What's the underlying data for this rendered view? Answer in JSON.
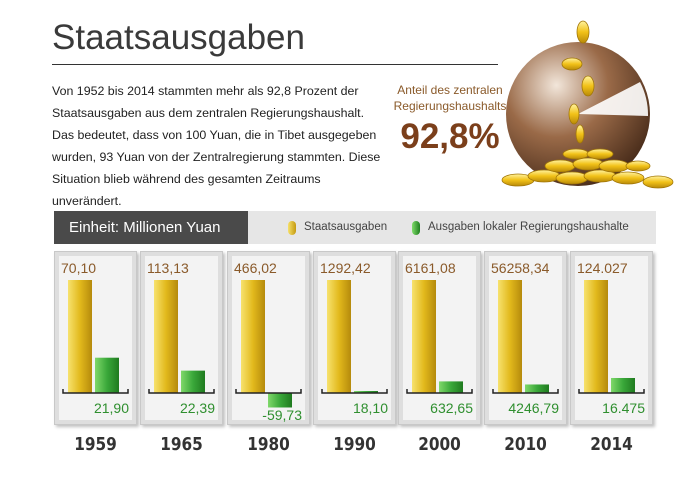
{
  "title": "Staatsausgaben",
  "intro_text": "Von 1952 bis 2014 stammten mehr als 92,8 Prozent der Staatsausgaben aus dem zentralen Regierungshaushalt. Das bedeutet, dass von 100 Yuan, die in Tibet ausgegeben wurden, 93 Yuan von der Zentralregierung stammten. Diese Situation blieb während des gesamten Zeitraums unverändert.",
  "share": {
    "label": "Anteil des zentralen Regierungshaushalts",
    "value": "92,8%",
    "icon": "coin-pile-icon"
  },
  "unit_label": "Einheit: Millionen Yuan",
  "colors": {
    "gold": "#d9b21a",
    "green": "#2f9a2f",
    "brown_text": "#8a5a2a",
    "green_text": "#2f8f2f"
  },
  "chart_data": {
    "type": "bar",
    "categories": [
      "1959",
      "1965",
      "1980",
      "1990",
      "2000",
      "2010",
      "2014"
    ],
    "series": [
      {
        "name": "Staatsausgaben",
        "color": "#d9b21a",
        "values": [
          70.1,
          113.13,
          466.02,
          1292.42,
          6161.08,
          56258.34,
          124027
        ],
        "labels": [
          "70,10",
          "113,13",
          "466,02",
          "1292,42",
          "6161,08",
          "56258,34",
          "124.027"
        ]
      },
      {
        "name": "Ausgaben lokaler Regierungshaushalte",
        "color": "#2f9a2f",
        "values": [
          21.9,
          22.39,
          -59.73,
          18.1,
          632.65,
          4246.79,
          16475
        ],
        "labels": [
          "21,90",
          "22,39",
          "-59,73",
          "18,10",
          "632,65",
          "4246,79",
          "16.475"
        ]
      }
    ],
    "legend_position": "top",
    "grid": false
  }
}
